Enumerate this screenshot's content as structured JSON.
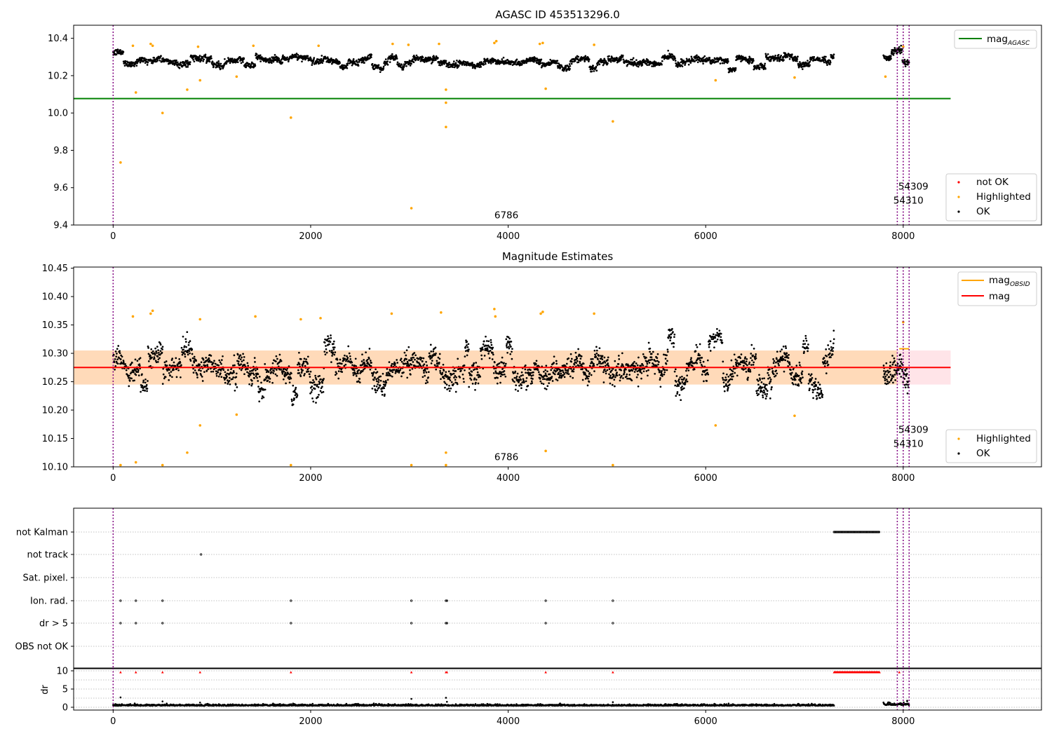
{
  "figure": {
    "title_top": "AGASC ID 453513296.0",
    "title_mid": "Magnitude Estimates"
  },
  "colors": {
    "ok": "#000000",
    "highlighted": "#ffa500",
    "not_ok": "#ff0000",
    "agasc_line": "#008000",
    "obsid_line": "#ffa500",
    "mean_line": "#ff0000",
    "band_orange": "#ffdab9",
    "band_pink": "#ffe4e8",
    "obsid_vline": "#800080",
    "flag_grid": "#b0b0b0"
  },
  "chart_data": [
    {
      "type": "scatter",
      "title": "AGASC ID 453513296.0",
      "xlim": [
        -400,
        9400
      ],
      "ylim": [
        9.4,
        10.47
      ],
      "xticks": [
        0,
        2000,
        4000,
        6000,
        8000
      ],
      "yticks": [
        9.4,
        9.6,
        9.8,
        10.0,
        10.2,
        10.4
      ],
      "ytick_labels": [
        "9.4",
        "9.6",
        "9.8",
        "10.0",
        "10.2",
        "10.4"
      ],
      "hlines": [
        {
          "name": "mag_AGASC",
          "y": 10.077,
          "x": [
            -400,
            8480
          ]
        }
      ],
      "vlines_x": [
        0,
        7940,
        8000,
        8060
      ],
      "ok_segments": [
        {
          "x": [
            0,
            7300
          ],
          "center": 10.275,
          "noise": 0.018
        },
        {
          "x": [
            7800,
            8060
          ],
          "center": 10.285,
          "noise": 0.02
        }
      ],
      "highlighted_points": [
        [
          75,
          9.735
        ],
        [
          230,
          10.11
        ],
        [
          500,
          10.0
        ],
        [
          750,
          10.125
        ],
        [
          880,
          10.175
        ],
        [
          1250,
          10.195
        ],
        [
          1800,
          9.975
        ],
        [
          3020,
          9.49
        ],
        [
          3370,
          10.125
        ],
        [
          3370,
          10.055
        ],
        [
          3370,
          9.925
        ],
        [
          4380,
          10.13
        ],
        [
          5060,
          9.955
        ],
        [
          6100,
          10.175
        ],
        [
          6900,
          10.19
        ],
        [
          7820,
          10.195
        ],
        [
          200,
          10.36
        ],
        [
          380,
          10.37
        ],
        [
          400,
          10.36
        ],
        [
          860,
          10.355
        ],
        [
          1420,
          10.36
        ],
        [
          2080,
          10.36
        ],
        [
          2830,
          10.37
        ],
        [
          2990,
          10.365
        ],
        [
          3300,
          10.37
        ],
        [
          3860,
          10.375
        ],
        [
          3880,
          10.385
        ],
        [
          4320,
          10.37
        ],
        [
          4350,
          10.375
        ],
        [
          4870,
          10.365
        ],
        [
          8000,
          10.355
        ]
      ],
      "legend_upper": [
        {
          "name": "mag",
          "sub": "AGASC"
        }
      ],
      "legend_lower": [
        "not OK",
        "Highlighted",
        "OK"
      ],
      "annotations": [
        {
          "label": "6786",
          "x": 3860,
          "y": 9.435
        },
        {
          "label": "54309",
          "x": 7950,
          "y": 9.59
        },
        {
          "label": "54310",
          "x": 7900,
          "y": 9.515
        }
      ]
    },
    {
      "type": "scatter",
      "title": "Magnitude Estimates",
      "xlim": [
        -400,
        9400
      ],
      "ylim": [
        10.1,
        10.452
      ],
      "xticks": [
        0,
        2000,
        4000,
        6000,
        8000
      ],
      "yticks": [
        10.1,
        10.15,
        10.2,
        10.25,
        10.3,
        10.35,
        10.4,
        10.45
      ],
      "ytick_labels": [
        "10.10",
        "10.15",
        "10.20",
        "10.25",
        "10.30",
        "10.35",
        "10.40",
        "10.45"
      ],
      "hlines": [
        {
          "name": "mag",
          "y": 10.275,
          "x": [
            -400,
            8480
          ]
        },
        {
          "name": "mag_OBSID",
          "y": 10.308,
          "x": [
            7960,
            8060
          ]
        }
      ],
      "bands": [
        {
          "y": [
            10.245,
            10.305
          ],
          "x": [
            -400,
            7940
          ],
          "color": "orange"
        },
        {
          "y": [
            10.245,
            10.305
          ],
          "x": [
            7940,
            8480
          ],
          "color": "pink"
        }
      ],
      "vlines_x": [
        0,
        7940,
        8000,
        8060
      ],
      "ok_segments": [
        {
          "x": [
            0,
            7300
          ],
          "center": 10.272,
          "noise": 0.022
        },
        {
          "x": [
            7800,
            8060
          ],
          "center": 10.28,
          "noise": 0.025
        }
      ],
      "highlighted_points": [
        [
          75,
          10.103
        ],
        [
          230,
          10.108
        ],
        [
          500,
          10.103
        ],
        [
          750,
          10.125
        ],
        [
          880,
          10.173
        ],
        [
          1250,
          10.192
        ],
        [
          1800,
          10.103
        ],
        [
          3020,
          10.103
        ],
        [
          3370,
          10.125
        ],
        [
          3370,
          10.103
        ],
        [
          4380,
          10.128
        ],
        [
          5060,
          10.103
        ],
        [
          6100,
          10.173
        ],
        [
          6900,
          10.19
        ],
        [
          200,
          10.365
        ],
        [
          380,
          10.37
        ],
        [
          400,
          10.375
        ],
        [
          880,
          10.36
        ],
        [
          1440,
          10.365
        ],
        [
          1900,
          10.36
        ],
        [
          2100,
          10.362
        ],
        [
          2820,
          10.37
        ],
        [
          3320,
          10.372
        ],
        [
          3860,
          10.378
        ],
        [
          3870,
          10.365
        ],
        [
          4330,
          10.37
        ],
        [
          4350,
          10.373
        ],
        [
          4870,
          10.37
        ],
        [
          8000,
          10.355
        ]
      ],
      "legend_upper": [
        {
          "name": "mag",
          "sub": "OBSID"
        },
        {
          "name": "mag",
          "sub": ""
        }
      ],
      "legend_lower": [
        "Highlighted",
        "OK"
      ],
      "annotations": [
        {
          "label": "6786",
          "x": 3860,
          "y": 10.112
        },
        {
          "label": "54309",
          "x": 7950,
          "y": 10.16
        },
        {
          "label": "54310",
          "x": 7900,
          "y": 10.135
        }
      ]
    },
    {
      "type": "scatter",
      "title": "",
      "xlim": [
        -400,
        9400
      ],
      "xticks": [
        0,
        2000,
        4000,
        6000,
        8000
      ],
      "flag_rows": [
        "not Kalman",
        "not track",
        "Sat. pixel.",
        "Ion. rad.",
        "dr > 5",
        "OBS not OK"
      ],
      "flag_points": {
        "not Kalman": [
          [
            7300,
            7760
          ]
        ],
        "not track": [
          890
        ],
        "Sat. pixel.": [],
        "Ion. rad.": [
          75,
          230,
          500,
          1800,
          3020,
          3370,
          3380,
          4380,
          5060
        ],
        "dr > 5": [
          75,
          230,
          500,
          1800,
          3020,
          3370,
          3380,
          4380,
          5060
        ],
        "OBS not OK": []
      },
      "vlines_x": [
        0,
        7940,
        8000,
        8060
      ]
    },
    {
      "type": "scatter",
      "ylabel": "dr",
      "xlim": [
        -400,
        9400
      ],
      "ylim": [
        0,
        10
      ],
      "xticks": [
        0,
        2000,
        4000,
        6000,
        8000
      ],
      "yticks": [
        0,
        5,
        10
      ],
      "ok_segments": [
        {
          "x": [
            0,
            7300
          ],
          "center": 0.4,
          "noise": 0.2
        },
        {
          "x": [
            7800,
            8060
          ],
          "center": 0.6,
          "noise": 0.3
        }
      ],
      "dr_outliers": [
        [
          75,
          2.7
        ],
        [
          500,
          1.6
        ],
        [
          880,
          1.3
        ],
        [
          3020,
          2.3
        ],
        [
          3370,
          2.6
        ],
        [
          3380,
          1.5
        ],
        [
          5060,
          1.4
        ],
        [
          8040,
          1.8
        ]
      ],
      "red_markers": [
        75,
        230,
        500,
        880,
        1800,
        3020,
        3370,
        3380,
        4380,
        5060,
        [
          7300,
          7760
        ],
        7960
      ],
      "vlines_x": [
        0,
        7940,
        8000,
        8060
      ]
    }
  ]
}
